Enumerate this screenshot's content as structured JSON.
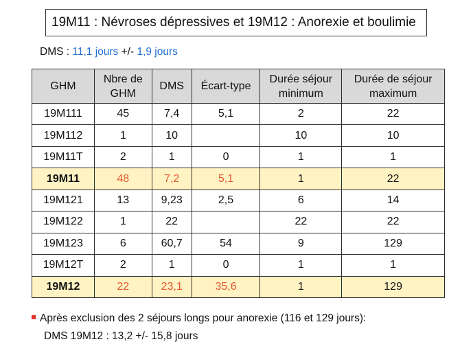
{
  "title": "19M11 : Névroses dépressives et 19M12 : Anorexie et boulimie",
  "dms": {
    "label": "DMS : ",
    "value": "11,1 jours",
    "separator": " +/- ",
    "sd": "1,9 jours"
  },
  "table": {
    "headers": [
      "GHM",
      "Nbre de GHM",
      "DMS",
      "Écart-type",
      "Durée séjour minimum",
      "Durée de séjour maximum"
    ],
    "header_lines": [
      [
        "GHM"
      ],
      [
        "Nbre de",
        "GHM"
      ],
      [
        "DMS"
      ],
      [
        "Écart-type"
      ],
      [
        "Durée séjour",
        "minimum"
      ],
      [
        "Durée de séjour",
        "maximum"
      ]
    ],
    "rows": [
      {
        "ghm": "19M111",
        "nb": "45",
        "dms": "7,4",
        "ecart": "5,1",
        "min": "2",
        "max": "22",
        "subtotal": false
      },
      {
        "ghm": "19M112",
        "nb": "1",
        "dms": "10",
        "ecart": "",
        "min": "10",
        "max": "10",
        "subtotal": false
      },
      {
        "ghm": "19M11T",
        "nb": "2",
        "dms": "1",
        "ecart": "0",
        "min": "1",
        "max": "1",
        "subtotal": false
      },
      {
        "ghm": "19M11",
        "nb": "48",
        "dms": "7,2",
        "ecart": "5,1",
        "min": "1",
        "max": "22",
        "subtotal": true
      },
      {
        "ghm": "19M121",
        "nb": "13",
        "dms": "9,23",
        "ecart": "2,5",
        "min": "6",
        "max": "14",
        "subtotal": false
      },
      {
        "ghm": "19M122",
        "nb": "1",
        "dms": "22",
        "ecart": "",
        "min": "22",
        "max": "22",
        "subtotal": false
      },
      {
        "ghm": "19M123",
        "nb": "6",
        "dms": "60,7",
        "ecart": "54",
        "min": "9",
        "max": "129",
        "subtotal": false
      },
      {
        "ghm": "19M12T",
        "nb": "2",
        "dms": "1",
        "ecart": "0",
        "min": "1",
        "max": "1",
        "subtotal": false
      },
      {
        "ghm": "19M12",
        "nb": "22",
        "dms": "23,1",
        "ecart": "35,6",
        "min": "1",
        "max": "129",
        "subtotal": true
      }
    ]
  },
  "note": {
    "line1": "Après exclusion des 2 séjours longs pour anorexie (116 et 129 jours):",
    "line2": "DMS 19M12 : 13,2 +/- 15,8 jours"
  },
  "colors": {
    "header_bg": "#d9d9d9",
    "subtotal_bg": "#fff3c4",
    "highlight_text": "#e4572e",
    "dms_blue": "#1f6fd1",
    "bullet": "#e0312a"
  }
}
